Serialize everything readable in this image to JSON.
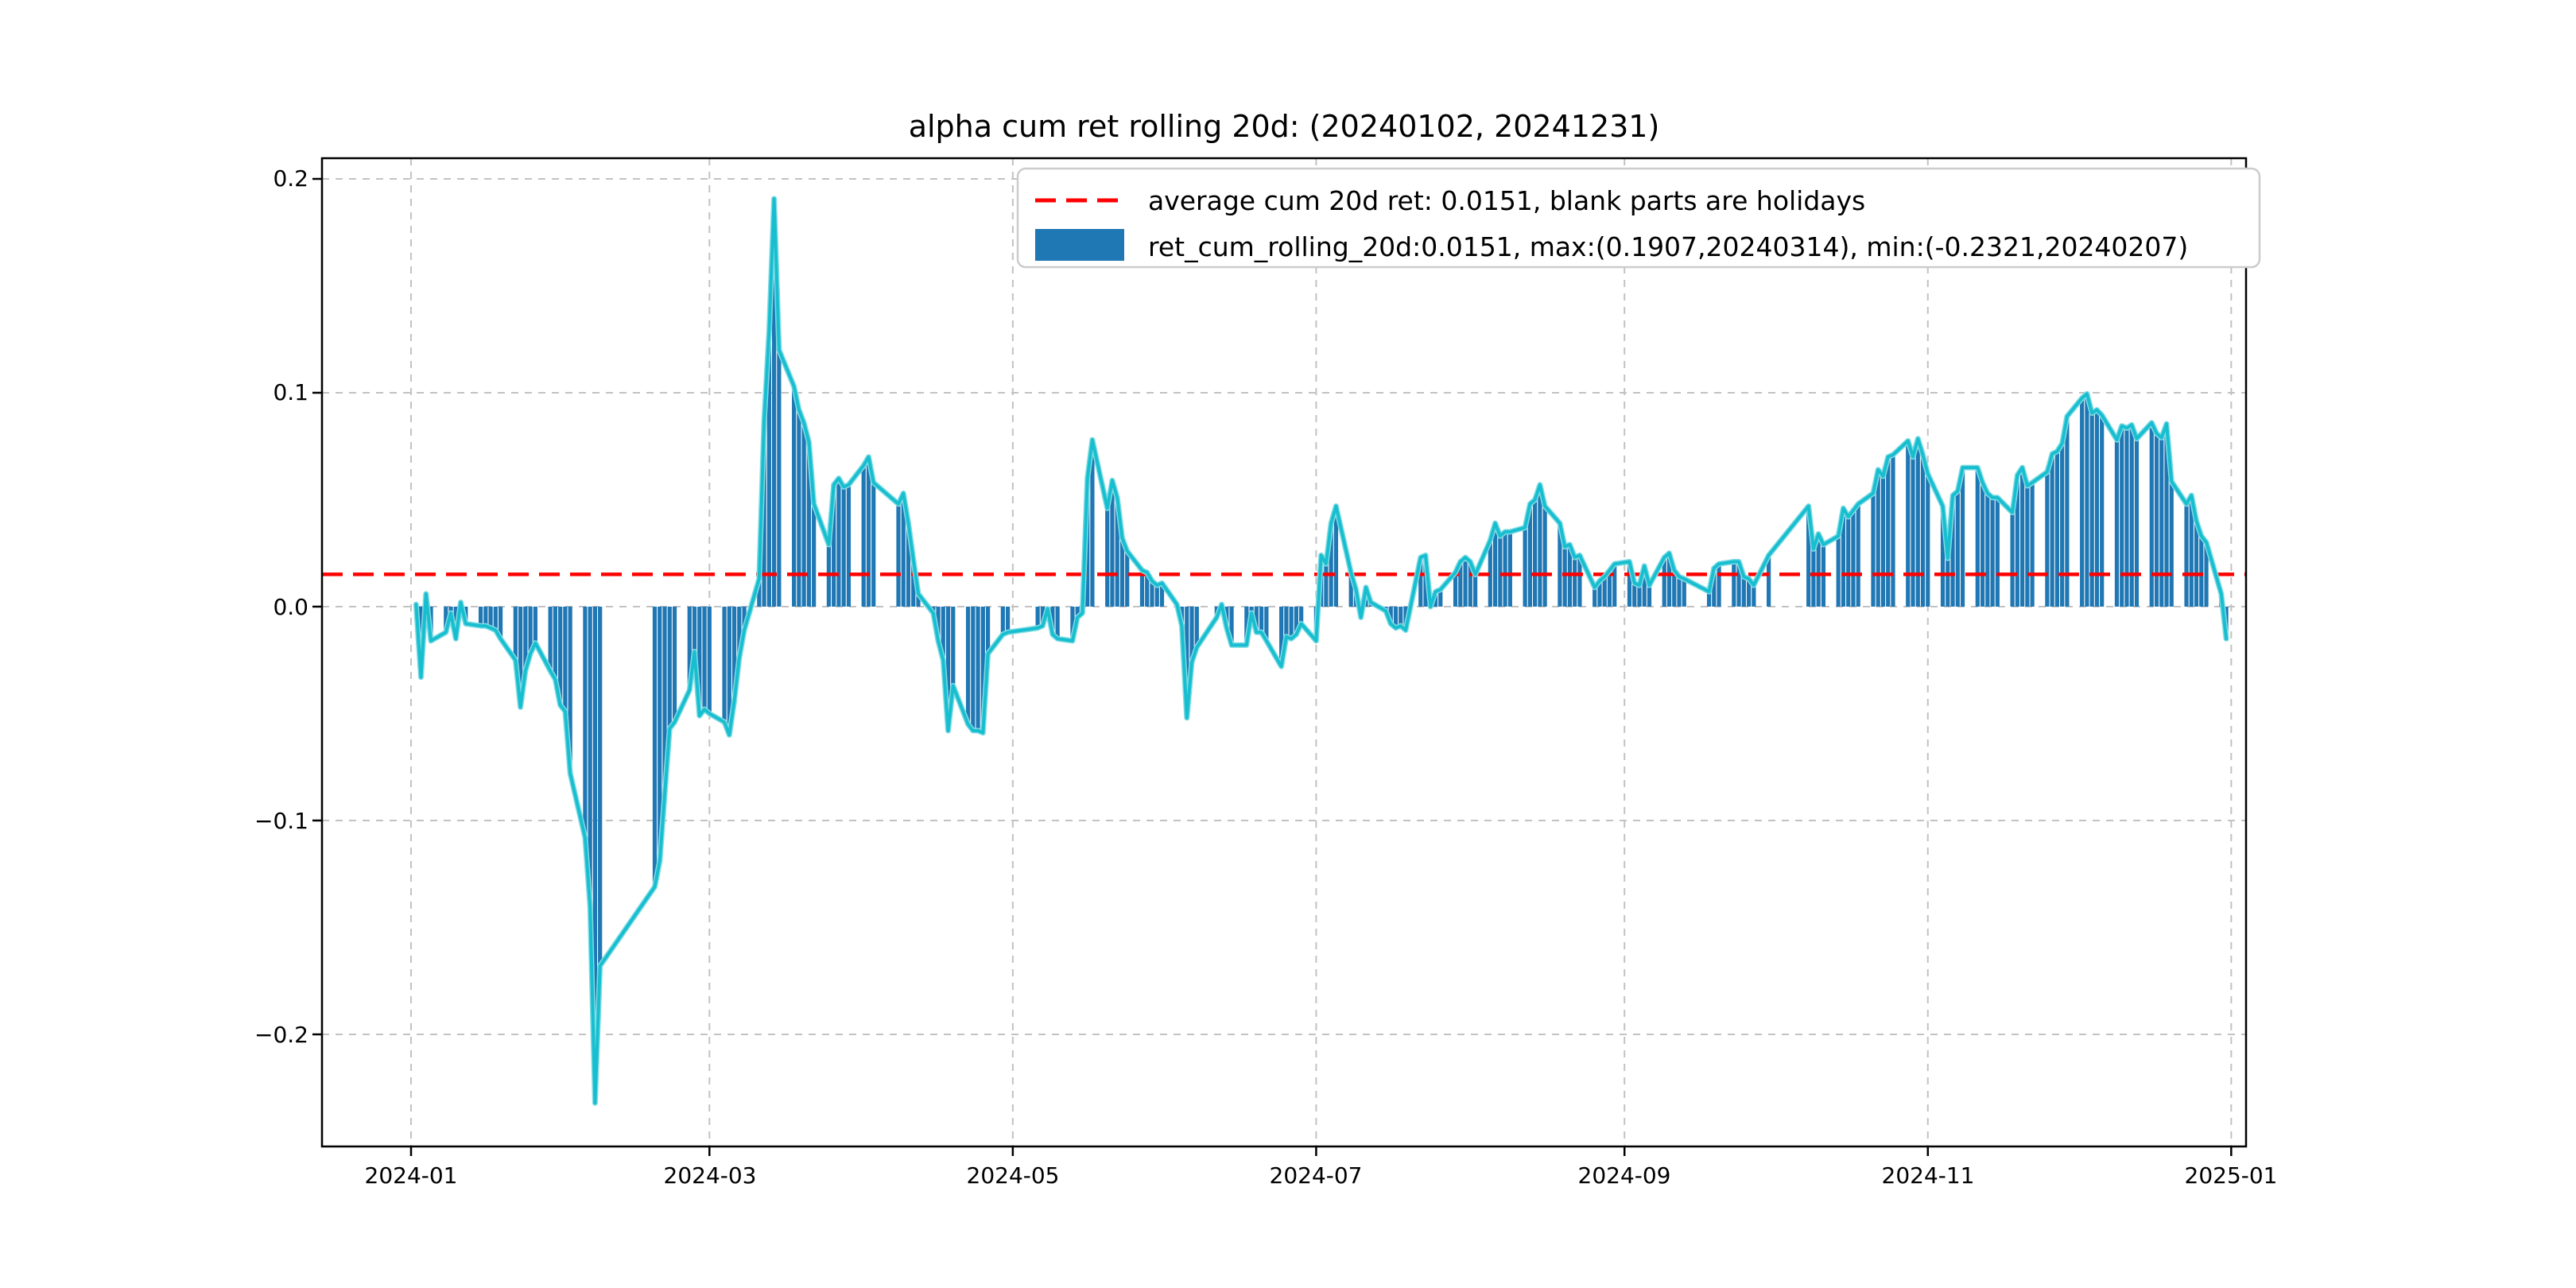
{
  "figure": {
    "title": "alpha cum ret rolling 20d: (20240102, 20241231)",
    "background": "#ffffff"
  },
  "legend": {
    "avg_label": "average cum 20d ret: 0.0151, blank parts are holidays",
    "series_label": "ret_cum_rolling_20d:0.0151, max:(0.1907,20240314), min:(-0.2321,20240207)"
  },
  "axes": {
    "y_ticks": [
      {
        "label": "0.2",
        "value": 0.2
      },
      {
        "label": "0.1",
        "value": 0.1
      },
      {
        "label": "0.0",
        "value": 0.0
      },
      {
        "label": "−0.1",
        "value": -0.1
      },
      {
        "label": "−0.2",
        "value": -0.2
      }
    ],
    "x_ticks": [
      {
        "label": "2024-01",
        "day": 0
      },
      {
        "label": "2024-03",
        "day": 60
      },
      {
        "label": "2024-05",
        "day": 121
      },
      {
        "label": "2024-07",
        "day": 182
      },
      {
        "label": "2024-09",
        "day": 244
      },
      {
        "label": "2024-11",
        "day": 305
      },
      {
        "label": "2025-01",
        "day": 366
      }
    ]
  },
  "chart_data": {
    "type": "bar",
    "title": "alpha cum ret rolling 20d: (20240102, 20241231)",
    "series_name": "ret_cum_rolling_20d",
    "average_line": 0.0151,
    "max": {
      "value": 0.1907,
      "date": "20240314"
    },
    "min": {
      "value": -0.2321,
      "date": "20240207"
    },
    "ylim": [
      -0.252,
      0.211
    ],
    "xlabel": "",
    "ylabel": "",
    "grid": true,
    "legend_position": "upper right",
    "note": "blank parts are holidays",
    "colors": {
      "bar": "#1f77b4",
      "line": "#17becf",
      "avg_line": "#ff0000",
      "grid": "#c2c2c2",
      "spine": "#000000"
    },
    "dates": [
      "0102",
      "0103",
      "0104",
      "0105",
      "0108",
      "0109",
      "0110",
      "0111",
      "0112",
      "0115",
      "0116",
      "0117",
      "0118",
      "0119",
      "0122",
      "0123",
      "0124",
      "0125",
      "0126",
      "0129",
      "0130",
      "0131",
      "0201",
      "0202",
      "0205",
      "0206",
      "0207",
      "0208",
      "0219",
      "0220",
      "0221",
      "0222",
      "0223",
      "0226",
      "0227",
      "0228",
      "0229",
      "0301",
      "0304",
      "0305",
      "0306",
      "0307",
      "0308",
      "0311",
      "0312",
      "0313",
      "0314",
      "0315",
      "0318",
      "0319",
      "0320",
      "0321",
      "0322",
      "0325",
      "0326",
      "0327",
      "0328",
      "0329",
      "0401",
      "0402",
      "0403",
      "0408",
      "0409",
      "0410",
      "0411",
      "0412",
      "0415",
      "0416",
      "0417",
      "0418",
      "0419",
      "0422",
      "0423",
      "0424",
      "0425",
      "0426",
      "0429",
      "0430",
      "0506",
      "0507",
      "0508",
      "0509",
      "0510",
      "0513",
      "0514",
      "0515",
      "0516",
      "0517",
      "0520",
      "0521",
      "0522",
      "0523",
      "0524",
      "0527",
      "0528",
      "0529",
      "0530",
      "0531",
      "0603",
      "0604",
      "0605",
      "0606",
      "0607",
      "0611",
      "0612",
      "0613",
      "0614",
      "0617",
      "0618",
      "0619",
      "0620",
      "0621",
      "0624",
      "0625",
      "0626",
      "0627",
      "0628",
      "0701",
      "0702",
      "0703",
      "0704",
      "0705",
      "0708",
      "0709",
      "0710",
      "0711",
      "0712",
      "0715",
      "0716",
      "0717",
      "0718",
      "0719",
      "0722",
      "0723",
      "0724",
      "0725",
      "0726",
      "0729",
      "0730",
      "0731",
      "0801",
      "0802",
      "0805",
      "0806",
      "0807",
      "0808",
      "0809",
      "0812",
      "0813",
      "0814",
      "0815",
      "0816",
      "0819",
      "0820",
      "0821",
      "0822",
      "0823",
      "0826",
      "0827",
      "0828",
      "0829",
      "0830",
      "0902",
      "0903",
      "0904",
      "0905",
      "0906",
      "0909",
      "0910",
      "0911",
      "0912",
      "0913",
      "0918",
      "0919",
      "0920",
      "0923",
      "0924",
      "0925",
      "0926",
      "0927",
      "0930",
      "1008",
      "1009",
      "1010",
      "1011",
      "1014",
      "1015",
      "1016",
      "1017",
      "1018",
      "1021",
      "1022",
      "1023",
      "1024",
      "1025",
      "1028",
      "1029",
      "1030",
      "1031",
      "1101",
      "1104",
      "1105",
      "1106",
      "1107",
      "1108",
      "1111",
      "1112",
      "1113",
      "1114",
      "1115",
      "1118",
      "1119",
      "1120",
      "1121",
      "1122",
      "1125",
      "1126",
      "1127",
      "1128",
      "1129",
      "1202",
      "1203",
      "1204",
      "1205",
      "1206",
      "1209",
      "1210",
      "1211",
      "1212",
      "1213",
      "1216",
      "1217",
      "1218",
      "1219",
      "1220",
      "1223",
      "1224",
      "1225",
      "1226",
      "1227",
      "1230",
      "1231"
    ],
    "values": [
      0.001,
      -0.033,
      0.006,
      -0.016,
      -0.012,
      -0.003,
      -0.015,
      0.002,
      -0.008,
      -0.009,
      -0.009,
      -0.01,
      -0.011,
      -0.015,
      -0.025,
      -0.047,
      -0.03,
      -0.022,
      -0.017,
      -0.03,
      -0.034,
      -0.046,
      -0.049,
      -0.078,
      -0.108,
      -0.14,
      -0.2321,
      -0.168,
      -0.131,
      -0.119,
      -0.088,
      -0.057,
      -0.054,
      -0.039,
      -0.021,
      -0.051,
      -0.048,
      -0.05,
      -0.054,
      -0.06,
      -0.044,
      -0.024,
      -0.011,
      0.013,
      0.087,
      0.129,
      0.1907,
      0.12,
      0.103,
      0.092,
      0.086,
      0.077,
      0.048,
      0.029,
      0.057,
      0.06,
      0.056,
      0.057,
      0.066,
      0.07,
      0.058,
      0.048,
      0.053,
      0.039,
      0.022,
      0.006,
      -0.003,
      -0.016,
      -0.025,
      -0.058,
      -0.037,
      -0.055,
      -0.058,
      -0.058,
      -0.059,
      -0.022,
      -0.013,
      -0.012,
      -0.01,
      -0.009,
      -0.001,
      -0.013,
      -0.015,
      -0.016,
      -0.005,
      -0.003,
      0.06,
      0.078,
      0.046,
      0.059,
      0.051,
      0.032,
      0.026,
      0.017,
      0.016,
      0.012,
      0.01,
      0.011,
      0.001,
      -0.009,
      -0.052,
      -0.026,
      -0.019,
      -0.005,
      0.001,
      -0.01,
      -0.018,
      -0.018,
      -0.003,
      -0.012,
      -0.012,
      -0.016,
      -0.028,
      -0.014,
      -0.015,
      -0.013,
      -0.008,
      -0.016,
      0.024,
      0.02,
      0.039,
      0.047,
      0.016,
      0.008,
      -0.005,
      0.009,
      0.002,
      -0.002,
      -0.008,
      -0.01,
      -0.009,
      -0.011,
      0.023,
      0.024,
      0.0,
      0.007,
      0.008,
      0.016,
      0.021,
      0.023,
      0.021,
      0.015,
      0.031,
      0.039,
      0.033,
      0.035,
      0.035,
      0.037,
      0.048,
      0.05,
      0.057,
      0.047,
      0.039,
      0.028,
      0.029,
      0.023,
      0.024,
      0.009,
      0.012,
      0.014,
      0.017,
      0.02,
      0.021,
      0.011,
      0.01,
      0.019,
      0.01,
      0.023,
      0.025,
      0.017,
      0.014,
      0.013,
      0.007,
      0.018,
      0.02,
      0.021,
      0.021,
      0.014,
      0.013,
      0.01,
      0.024,
      0.047,
      0.027,
      0.034,
      0.029,
      0.033,
      0.046,
      0.042,
      0.045,
      0.048,
      0.053,
      0.064,
      0.061,
      0.07,
      0.071,
      0.0775,
      0.07,
      0.0785,
      0.071,
      0.062,
      0.047,
      0.0226,
      0.052,
      0.054,
      0.065,
      0.065,
      0.058,
      0.053,
      0.051,
      0.051,
      0.044,
      0.0615,
      0.065,
      0.0565,
      0.058,
      0.063,
      0.0714,
      0.0726,
      0.0763,
      0.089,
      0.0975,
      0.0995,
      0.0905,
      0.092,
      0.0895,
      0.078,
      0.0845,
      0.0835,
      0.085,
      0.0785,
      0.086,
      0.081,
      0.079,
      0.0855,
      0.0585,
      0.048,
      0.052,
      0.04,
      0.033,
      0.03,
      0.006,
      -0.015
    ]
  }
}
